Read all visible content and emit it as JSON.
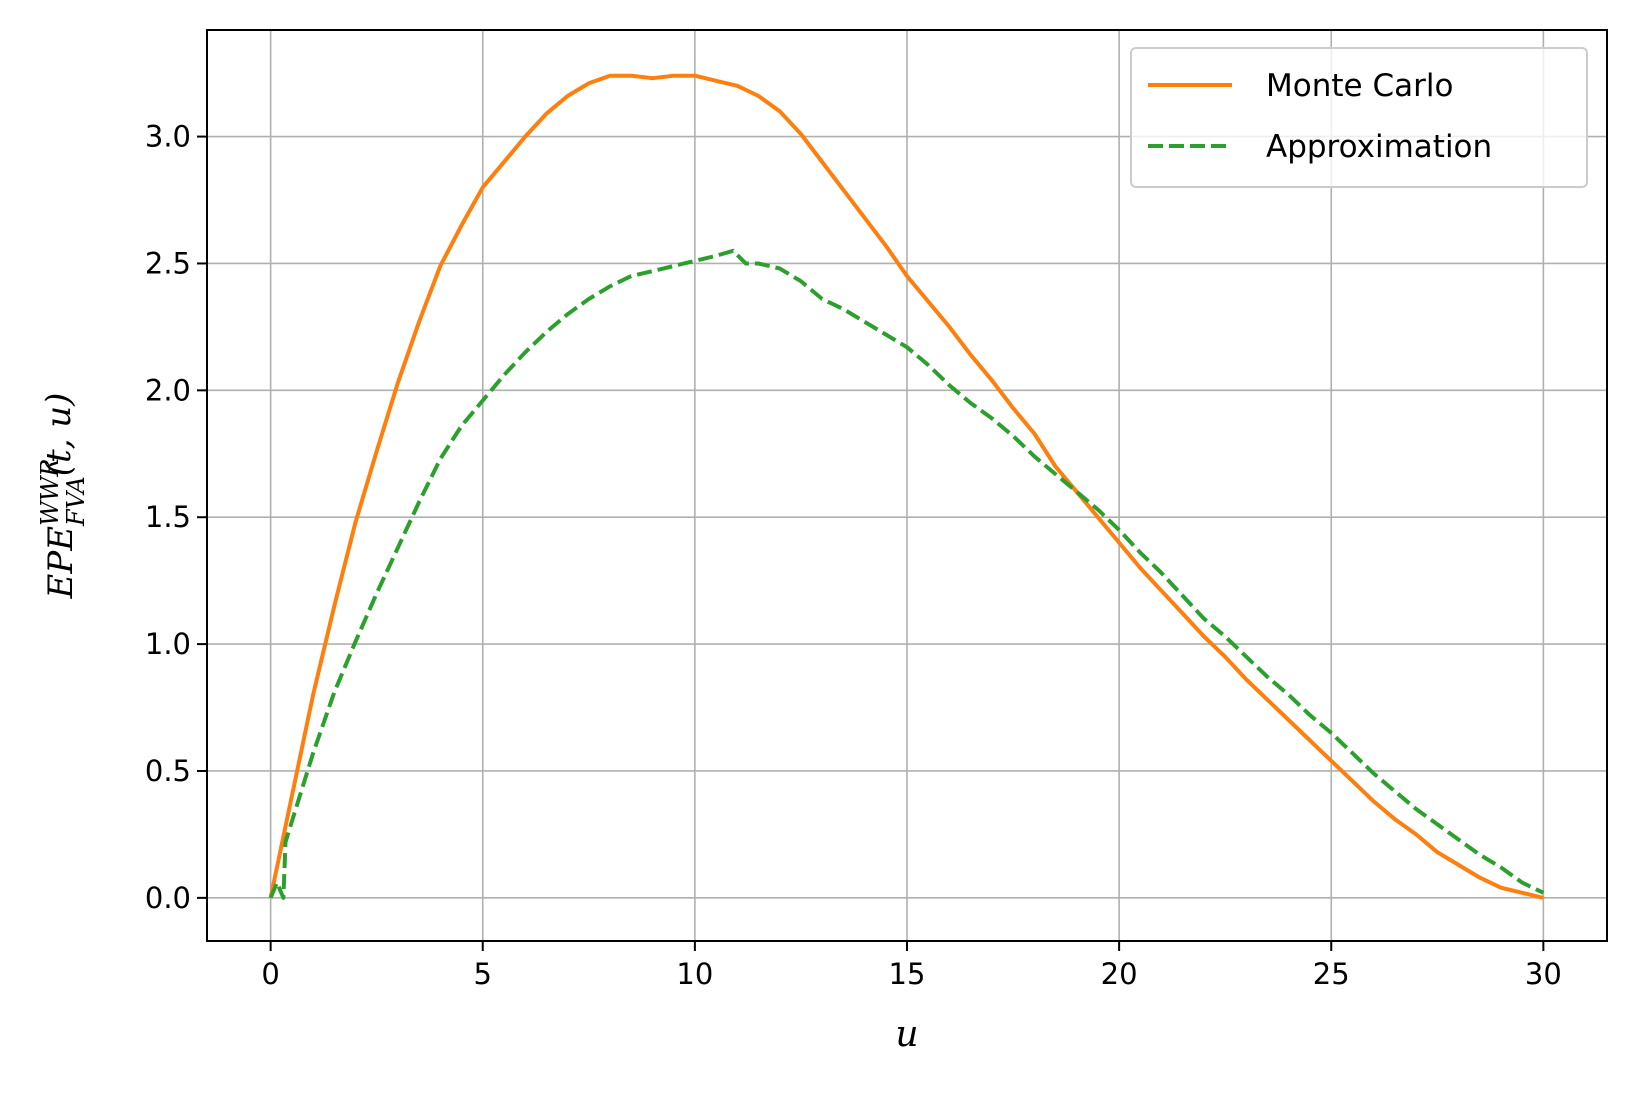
{
  "chart_data": {
    "type": "line",
    "xlabel": "u",
    "ylabel": {
      "base": "EPE",
      "sup": "WWR",
      "sub": "FVA",
      "args": "(t, u)"
    },
    "xlim": [
      -1.5,
      31.5
    ],
    "ylim": [
      -0.17,
      3.42
    ],
    "xticks": [
      0,
      5,
      10,
      15,
      20,
      25,
      30
    ],
    "xtick_labels": [
      "0",
      "5",
      "10",
      "15",
      "20",
      "25",
      "30"
    ],
    "yticks": [
      0.0,
      0.5,
      1.0,
      1.5,
      2.0,
      2.5,
      3.0
    ],
    "ytick_labels": [
      "0.0",
      "0.5",
      "1.0",
      "1.5",
      "2.0",
      "2.5",
      "3.0"
    ],
    "grid": true,
    "legend_position": "top-right",
    "series": [
      {
        "name": "Monte Carlo",
        "color": "#ff7f0e",
        "style": "solid",
        "points": [
          [
            0,
            0
          ],
          [
            0.5,
            0.4
          ],
          [
            1,
            0.8
          ],
          [
            1.5,
            1.15
          ],
          [
            2,
            1.48
          ],
          [
            2.5,
            1.76
          ],
          [
            3,
            2.03
          ],
          [
            3.5,
            2.27
          ],
          [
            4,
            2.49
          ],
          [
            4.5,
            2.65
          ],
          [
            5,
            2.8
          ],
          [
            5.5,
            2.9
          ],
          [
            6,
            3.0
          ],
          [
            6.5,
            3.09
          ],
          [
            7,
            3.16
          ],
          [
            7.5,
            3.21
          ],
          [
            8,
            3.24
          ],
          [
            8.5,
            3.24
          ],
          [
            9,
            3.23
          ],
          [
            9.5,
            3.24
          ],
          [
            10,
            3.24
          ],
          [
            10.5,
            3.22
          ],
          [
            11,
            3.2
          ],
          [
            11.5,
            3.16
          ],
          [
            12,
            3.1
          ],
          [
            12.5,
            3.01
          ],
          [
            13,
            2.9
          ],
          [
            13.5,
            2.79
          ],
          [
            14,
            2.68
          ],
          [
            14.5,
            2.57
          ],
          [
            15,
            2.45
          ],
          [
            15.5,
            2.35
          ],
          [
            16,
            2.25
          ],
          [
            16.5,
            2.14
          ],
          [
            17,
            2.04
          ],
          [
            17.5,
            1.93
          ],
          [
            18,
            1.83
          ],
          [
            18.5,
            1.7
          ],
          [
            19,
            1.6
          ],
          [
            19.5,
            1.5
          ],
          [
            20,
            1.4
          ],
          [
            20.5,
            1.3
          ],
          [
            21,
            1.21
          ],
          [
            21.5,
            1.12
          ],
          [
            22,
            1.03
          ],
          [
            22.5,
            0.95
          ],
          [
            23,
            0.86
          ],
          [
            23.5,
            0.78
          ],
          [
            24,
            0.7
          ],
          [
            24.5,
            0.62
          ],
          [
            25,
            0.54
          ],
          [
            25.5,
            0.46
          ],
          [
            26,
            0.38
          ],
          [
            26.5,
            0.31
          ],
          [
            27,
            0.25
          ],
          [
            27.5,
            0.18
          ],
          [
            28,
            0.13
          ],
          [
            28.5,
            0.08
          ],
          [
            29,
            0.04
          ],
          [
            29.5,
            0.02
          ],
          [
            30,
            0
          ]
        ]
      },
      {
        "name": "Approximation",
        "color": "#2ca02c",
        "style": "dashed",
        "points": [
          [
            0,
            0
          ],
          [
            0.15,
            0.06
          ],
          [
            0.3,
            0
          ],
          [
            0.35,
            0.22
          ],
          [
            0.5,
            0.3
          ],
          [
            1,
            0.57
          ],
          [
            1.5,
            0.81
          ],
          [
            2,
            1.01
          ],
          [
            2.5,
            1.2
          ],
          [
            3,
            1.38
          ],
          [
            3.5,
            1.56
          ],
          [
            4,
            1.73
          ],
          [
            4.5,
            1.86
          ],
          [
            5,
            1.96
          ],
          [
            5.5,
            2.06
          ],
          [
            6,
            2.15
          ],
          [
            6.5,
            2.23
          ],
          [
            7,
            2.3
          ],
          [
            7.5,
            2.36
          ],
          [
            8,
            2.41
          ],
          [
            8.5,
            2.45
          ],
          [
            9,
            2.47
          ],
          [
            9.5,
            2.49
          ],
          [
            10,
            2.51
          ],
          [
            10.5,
            2.53
          ],
          [
            10.9,
            2.55
          ],
          [
            11.2,
            2.5
          ],
          [
            11.5,
            2.5
          ],
          [
            12,
            2.48
          ],
          [
            12.5,
            2.43
          ],
          [
            13,
            2.36
          ],
          [
            13.5,
            2.32
          ],
          [
            14,
            2.27
          ],
          [
            14.5,
            2.22
          ],
          [
            15,
            2.17
          ],
          [
            15.5,
            2.1
          ],
          [
            16,
            2.02
          ],
          [
            16.5,
            1.95
          ],
          [
            17,
            1.89
          ],
          [
            17.5,
            1.82
          ],
          [
            18,
            1.74
          ],
          [
            18.5,
            1.67
          ],
          [
            19,
            1.6
          ],
          [
            19.5,
            1.53
          ],
          [
            20,
            1.45
          ],
          [
            20.5,
            1.36
          ],
          [
            21,
            1.28
          ],
          [
            21.5,
            1.19
          ],
          [
            22,
            1.1
          ],
          [
            22.5,
            1.03
          ],
          [
            23,
            0.95
          ],
          [
            23.5,
            0.87
          ],
          [
            24,
            0.8
          ],
          [
            24.5,
            0.72
          ],
          [
            25,
            0.65
          ],
          [
            25.5,
            0.57
          ],
          [
            26,
            0.49
          ],
          [
            26.5,
            0.42
          ],
          [
            27,
            0.35
          ],
          [
            27.5,
            0.29
          ],
          [
            28,
            0.23
          ],
          [
            28.5,
            0.17
          ],
          [
            29,
            0.12
          ],
          [
            29.5,
            0.06
          ],
          [
            30,
            0.02
          ]
        ]
      }
    ]
  }
}
